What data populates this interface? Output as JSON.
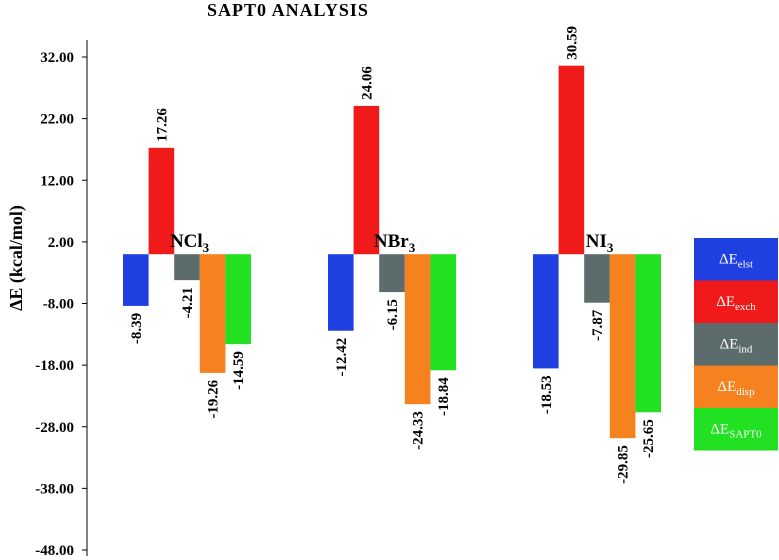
{
  "chart_data": {
    "type": "bar",
    "title": "SAPT0 ANALYSIS",
    "ylabel": "ΔE (kcal/mol)",
    "ylim": [
      -48,
      32
    ],
    "yticks": [
      "32.00",
      "22.00",
      "12.00",
      "2.00",
      "-8.00",
      "-18.00",
      "-28.00",
      "-38.00",
      "-48.00"
    ],
    "grid": false,
    "legend_position": "right",
    "categories": [
      {
        "base": "NCl",
        "sub": "3"
      },
      {
        "base": "NBr",
        "sub": "3"
      },
      {
        "base": "NI",
        "sub": "3"
      }
    ],
    "series": [
      {
        "name": "ΔE",
        "sub": "elst",
        "color": "#1f3fe0",
        "values": [
          -8.39,
          -12.42,
          -18.53
        ],
        "labels": [
          "-8.39",
          "-12.42",
          "-18.53"
        ]
      },
      {
        "name": "ΔE",
        "sub": "exch",
        "color": "#f01a1a",
        "values": [
          17.26,
          24.06,
          30.59
        ],
        "labels": [
          "17.26",
          "24.06",
          "30.59"
        ]
      },
      {
        "name": "ΔE",
        "sub": "ind",
        "color": "#5c6b6b",
        "values": [
          -4.21,
          -6.15,
          -7.87
        ],
        "labels": [
          "-4.21",
          "-6.15",
          "-7.87"
        ]
      },
      {
        "name": "ΔE",
        "sub": "disp",
        "color": "#f5821f",
        "values": [
          -19.26,
          -24.33,
          -29.85
        ],
        "labels": [
          "-19.26",
          "-24.33",
          "-29.85"
        ]
      },
      {
        "name": "ΔE",
        "sub": "SAPT0",
        "color": "#22e022",
        "values": [
          -14.59,
          -18.84,
          -25.65
        ],
        "labels": [
          "-14.59",
          "-18.84",
          "-25.65"
        ]
      }
    ]
  }
}
